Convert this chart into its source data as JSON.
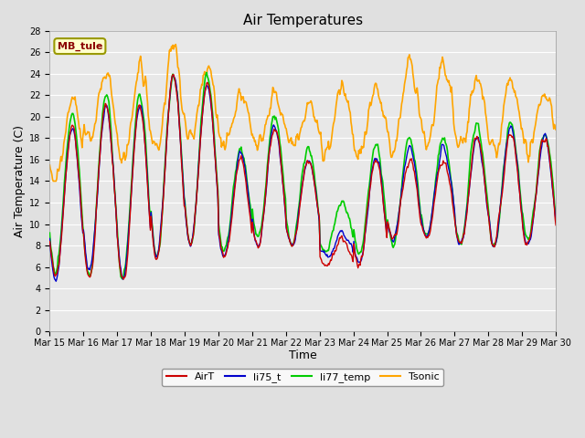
{
  "title": "Air Temperatures",
  "xlabel": "Time",
  "ylabel": "Air Temperature (C)",
  "ylim": [
    0,
    28
  ],
  "yticks": [
    0,
    2,
    4,
    6,
    8,
    10,
    12,
    14,
    16,
    18,
    20,
    22,
    24,
    26,
    28
  ],
  "colors": {
    "AirT": "#cc0000",
    "li75_t": "#0000cc",
    "li77_temp": "#00cc00",
    "Tsonic": "#ffa500"
  },
  "linewidths": {
    "AirT": 1.0,
    "li75_t": 1.0,
    "li77_temp": 1.2,
    "Tsonic": 1.2
  },
  "legend_labels": [
    "AirT",
    "li75_t",
    "li77_temp",
    "Tsonic"
  ],
  "annotation_text": "MB_tule",
  "annotation_color": "#8b0000",
  "background_color": "#e0e0e0",
  "plot_bg_color": "#e8e8e8",
  "title_fontsize": 11,
  "axis_fontsize": 9,
  "tick_fontsize": 7,
  "n_days": 15,
  "start_day": 15,
  "grid_color": "#ffffff",
  "grid_linewidth": 0.8,
  "figwidth": 6.4,
  "figheight": 4.8,
  "dpi": 100
}
